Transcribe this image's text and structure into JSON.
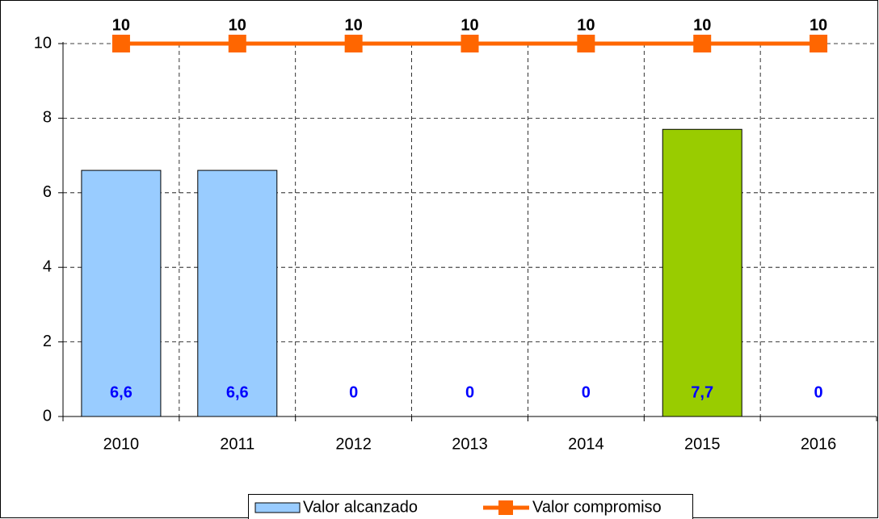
{
  "chart_data": {
    "type": "bar",
    "categories": [
      "2010",
      "2011",
      "2012",
      "2013",
      "2014",
      "2015",
      "2016"
    ],
    "series": [
      {
        "name": "Valor alcanzado",
        "type": "bar",
        "color": "#99ccff",
        "colors": [
          "#99ccff",
          "#99ccff",
          "#99ccff",
          "#99ccff",
          "#99ccff",
          "#99cc00",
          "#99ccff"
        ],
        "values": [
          6.6,
          6.6,
          0,
          0,
          0,
          7.7,
          0
        ],
        "value_labels": [
          "6,6",
          "6,6",
          "0",
          "0",
          "0",
          "7,7",
          "0"
        ],
        "label_color": "#0000ff"
      },
      {
        "name": "Valor compromiso",
        "type": "line",
        "color": "#ff6600",
        "values": [
          10,
          10,
          10,
          10,
          10,
          10,
          10
        ],
        "label_color": "#000000"
      }
    ],
    "ylim": [
      0,
      10
    ],
    "yticks": [
      0,
      2,
      4,
      6,
      8,
      10
    ],
    "grid": true,
    "legend": "bottom"
  }
}
